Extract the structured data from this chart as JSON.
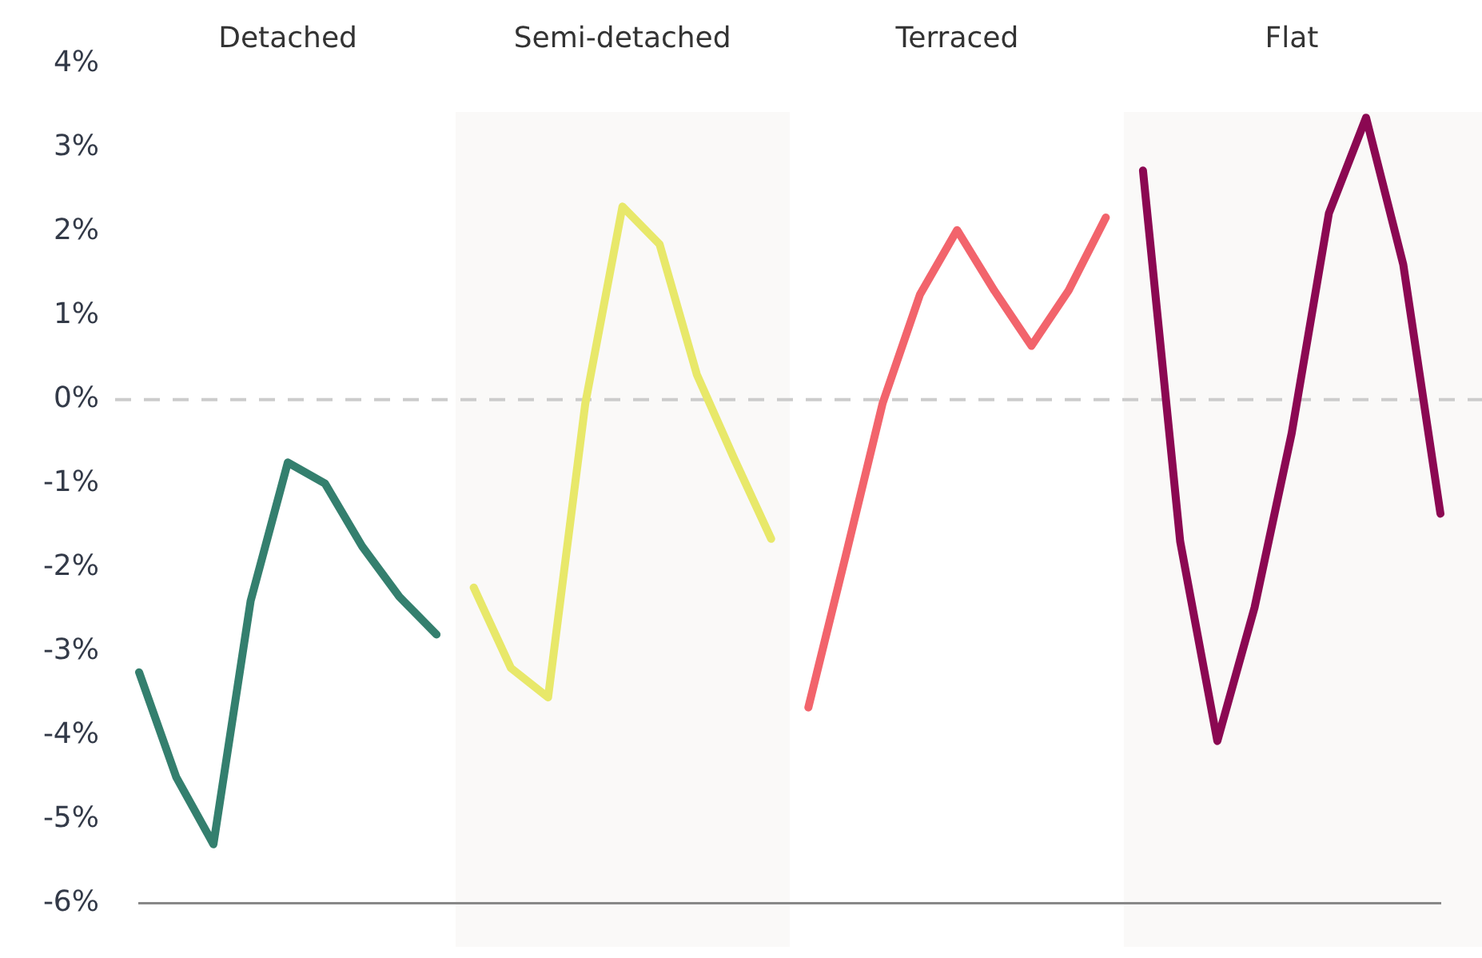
{
  "chart_data": {
    "type": "line",
    "categories": [
      null,
      null,
      null,
      null,
      null,
      null,
      null,
      null,
      null,
      null,
      null,
      null,
      null,
      null,
      null,
      null,
      null,
      null,
      null,
      null,
      null,
      null,
      null,
      null,
      null,
      null,
      null,
      null,
      null,
      null,
      null,
      null,
      null,
      null,
      null,
      null
    ],
    "series": [
      {
        "color": "#347f6e",
        "values": [
          -3.25,
          -4.5,
          -5.3,
          -2.4,
          -0.75,
          -1.0,
          -1.75,
          -2.35,
          -2.8,
          null,
          null,
          null,
          null,
          null,
          null,
          null,
          null,
          null,
          null,
          null,
          null,
          null,
          null,
          null,
          null,
          null,
          null,
          null,
          null,
          null,
          null,
          null,
          null,
          null,
          null,
          null
        ]
      },
      {
        "color": "#e8e86a",
        "values": [
          null,
          null,
          null,
          null,
          null,
          null,
          null,
          null,
          null,
          -2.24,
          -3.2,
          -3.55,
          -0.05,
          2.3,
          1.85,
          0.3,
          -0.7,
          -1.66,
          null,
          null,
          null,
          null,
          null,
          null,
          null,
          null,
          null,
          null,
          null,
          null,
          null,
          null,
          null,
          null,
          null,
          null
        ]
      },
      {
        "color": "#f2646c",
        "values": [
          null,
          null,
          null,
          null,
          null,
          null,
          null,
          null,
          null,
          null,
          null,
          null,
          null,
          null,
          null,
          null,
          null,
          null,
          -3.67,
          -1.87,
          -0.04,
          1.25,
          2.02,
          1.3,
          0.64,
          1.3,
          2.17,
          null,
          null,
          null,
          null,
          null,
          null,
          null,
          null,
          null
        ]
      },
      {
        "color": "#8b0852",
        "values": [
          null,
          null,
          null,
          null,
          null,
          null,
          null,
          null,
          null,
          null,
          null,
          null,
          null,
          null,
          null,
          null,
          null,
          null,
          null,
          null,
          null,
          null,
          null,
          null,
          null,
          null,
          null,
          2.73,
          -1.69,
          -4.07,
          -2.48,
          -0.4,
          2.22,
          3.36,
          1.61,
          -1.36
        ]
      }
    ],
    "ylim": [
      -6,
      4
    ],
    "yticks": [
      {
        "value": -6,
        "label": "-6%"
      },
      {
        "value": -5,
        "label": "-5%"
      },
      {
        "value": -4,
        "label": "-4%"
      },
      {
        "value": -3,
        "label": "-3%"
      },
      {
        "value": -2,
        "label": "-2%"
      },
      {
        "value": -1,
        "label": "-1%"
      },
      {
        "value": 0,
        "label": "0%"
      },
      {
        "value": 1,
        "label": "1%"
      },
      {
        "value": 2,
        "label": "2%"
      },
      {
        "value": 3,
        "label": "3%"
      },
      {
        "value": 4,
        "label": "4%"
      }
    ],
    "ref_lines": [
      {
        "axis": "y",
        "value": 0,
        "color": "#cccccc",
        "line_style": "dashed"
      }
    ],
    "annotations": [
      "Detached",
      "Semi-detached",
      "Terraced",
      "Flat"
    ],
    "grid": false,
    "marker": "none"
  }
}
